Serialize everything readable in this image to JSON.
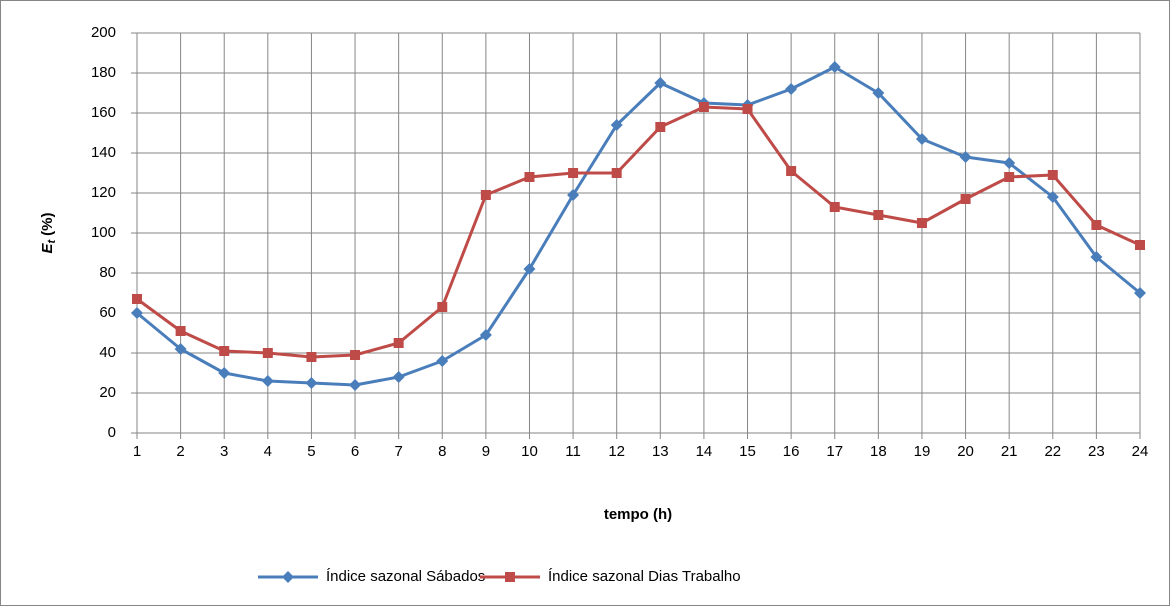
{
  "chart_data": {
    "type": "line",
    "ylabel": "E",
    "ylabel_subscript": "t",
    "ylabel_unit": "(%)",
    "xlabel": "tempo (h)",
    "x": [
      1,
      2,
      3,
      4,
      5,
      6,
      7,
      8,
      9,
      10,
      11,
      12,
      13,
      14,
      15,
      16,
      17,
      18,
      19,
      20,
      21,
      22,
      23,
      24
    ],
    "xlim": [
      1,
      24
    ],
    "xticks": [
      1,
      2,
      3,
      4,
      5,
      6,
      7,
      8,
      9,
      10,
      11,
      12,
      13,
      14,
      15,
      16,
      17,
      18,
      19,
      20,
      21,
      22,
      23,
      24
    ],
    "ylim": [
      0,
      200
    ],
    "yticks": [
      0,
      20,
      40,
      60,
      80,
      100,
      120,
      140,
      160,
      180,
      200
    ],
    "grid": true,
    "legend": "bottom",
    "series": [
      {
        "name": "Índice sazonal Sábados",
        "color": "#4a7ebb",
        "marker": "diamond",
        "values": [
          60,
          42,
          30,
          26,
          25,
          24,
          28,
          36,
          49,
          82,
          119,
          154,
          175,
          165,
          164,
          172,
          183,
          170,
          147,
          138,
          135,
          118,
          88,
          70
        ]
      },
      {
        "name": "Índice sazonal Dias Trabalho",
        "color": "#be4b48",
        "marker": "square",
        "values": [
          67,
          51,
          41,
          40,
          38,
          39,
          45,
          63,
          119,
          128,
          130,
          130,
          153,
          163,
          162,
          131,
          113,
          109,
          105,
          117,
          128,
          129,
          104,
          94
        ]
      }
    ]
  }
}
